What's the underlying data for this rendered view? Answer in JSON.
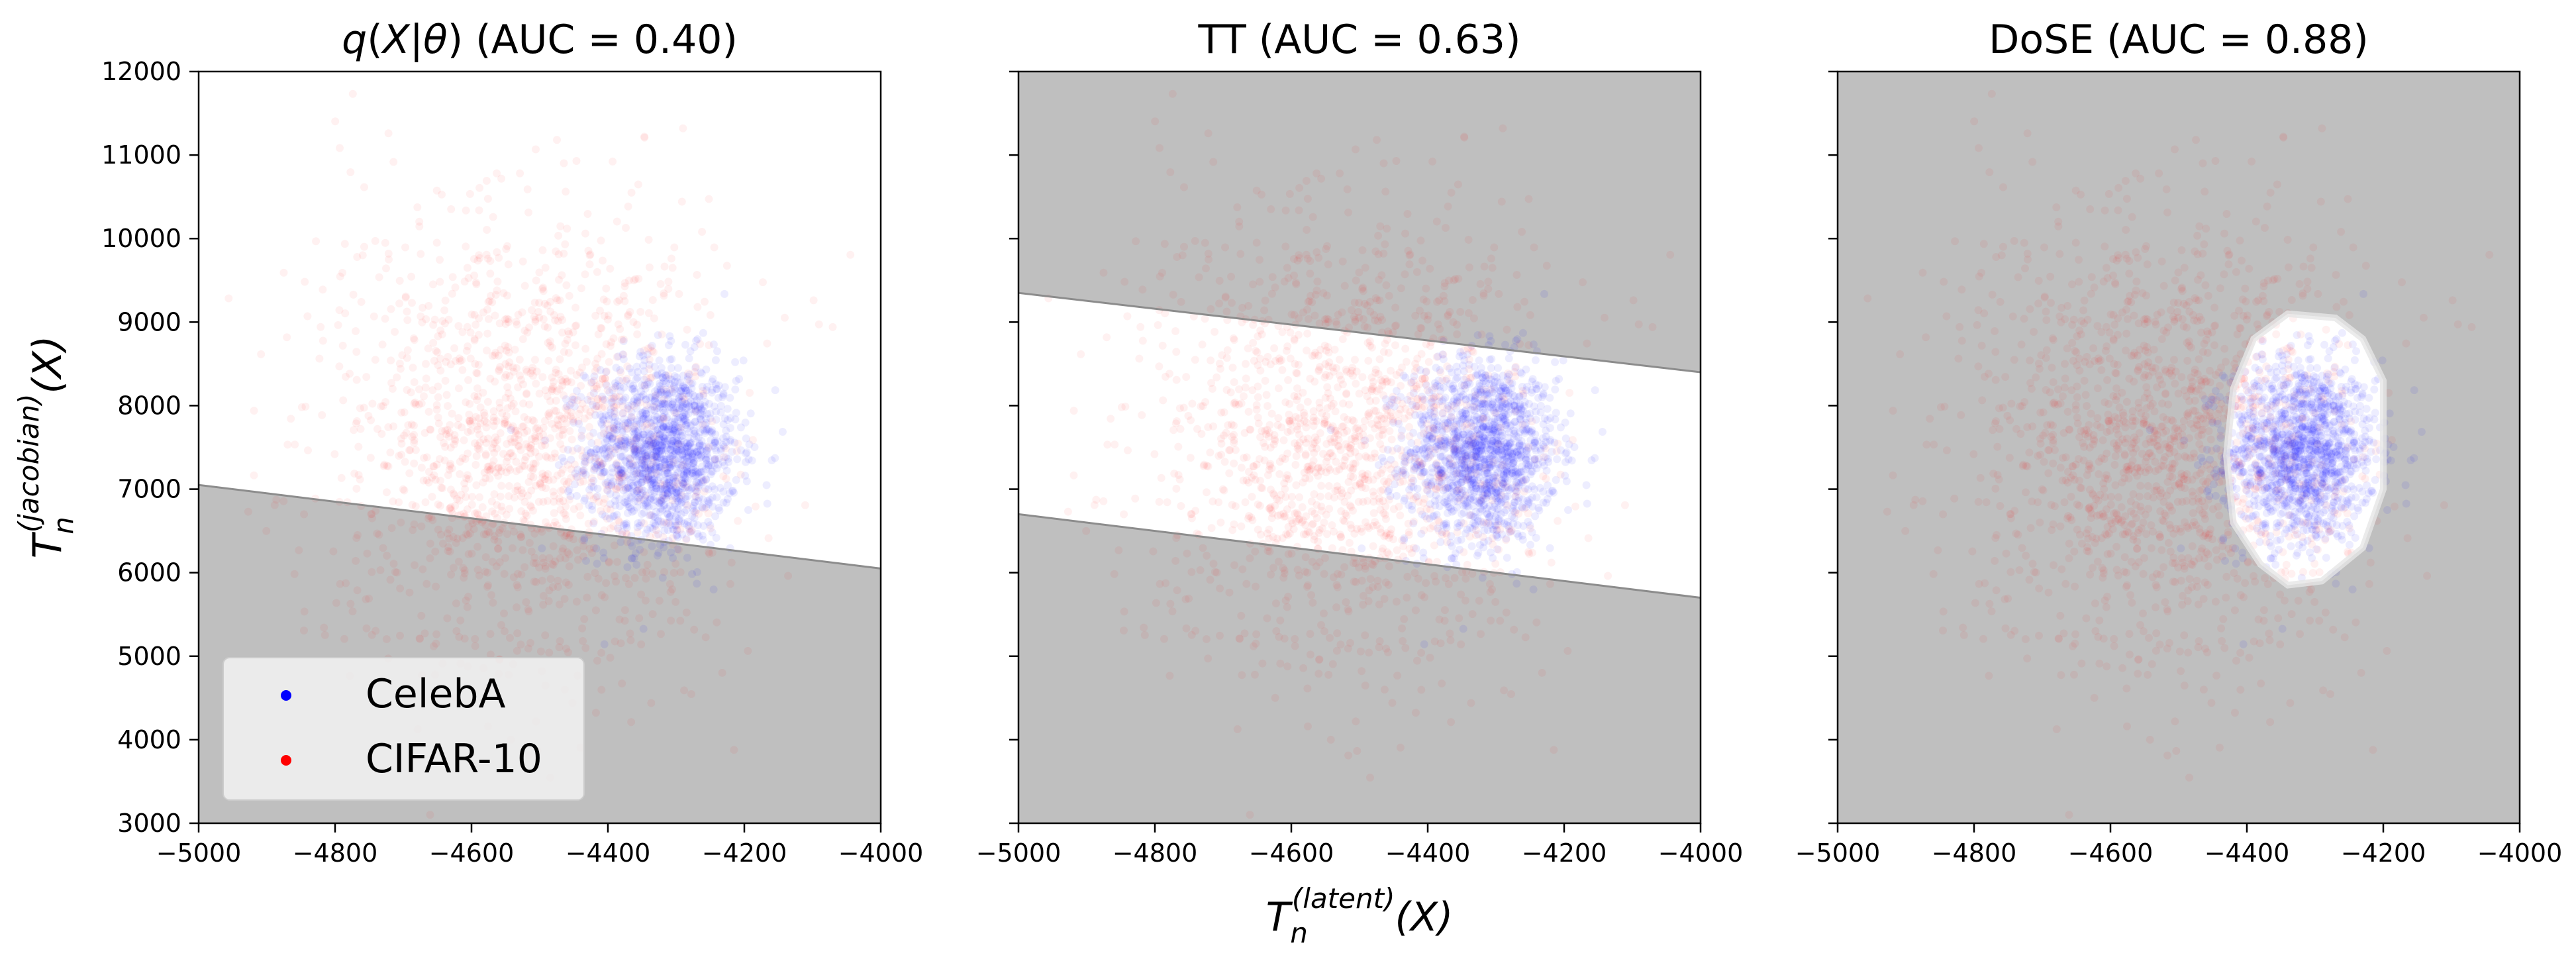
{
  "chart_data": [
    {
      "type": "scatter",
      "title": "q(X|θ) (AUC  = 0.40)",
      "title_parts": {
        "q": "q",
        "open": "(",
        "X": "X",
        "bar": "|",
        "theta": "θ",
        "close": ")",
        "rest": " (AUC  = 0.40)"
      },
      "xlim": [
        -5000,
        -4000
      ],
      "ylim": [
        3000,
        12000
      ],
      "x_ticks": [
        -5000,
        -4800,
        -4600,
        -4400,
        -4200,
        -4000
      ],
      "x_tick_labels": [
        "−5000",
        "−4800",
        "−4600",
        "−4400",
        "−4200",
        "−4000"
      ],
      "y_ticks": [
        3000,
        4000,
        5000,
        6000,
        7000,
        8000,
        9000,
        10000,
        11000,
        12000
      ],
      "y_tick_labels": [
        "3000",
        "4000",
        "5000",
        "6000",
        "7000",
        "8000",
        "9000",
        "10000",
        "11000",
        "12000"
      ],
      "decision_region": {
        "shading": "below_line",
        "lines": [
          {
            "x": [
              -5000,
              -4000
            ],
            "y": [
              7050,
              6050
            ]
          }
        ]
      },
      "legend": {
        "placement": "lower-left"
      }
    },
    {
      "type": "scatter",
      "title": "TT (AUC  = 0.63)",
      "xlim": [
        -5000,
        -4000
      ],
      "ylim": [
        3000,
        12000
      ],
      "x_ticks": [
        -5000,
        -4800,
        -4600,
        -4400,
        -4200,
        -4000
      ],
      "x_tick_labels": [
        "−5000",
        "−4800",
        "−4600",
        "−4400",
        "−4200",
        "−4000"
      ],
      "y_ticks": [
        3000,
        4000,
        5000,
        6000,
        7000,
        8000,
        9000,
        10000,
        11000,
        12000
      ],
      "decision_region": {
        "shading": "outside_band",
        "lines": [
          {
            "x": [
              -5000,
              -4000
            ],
            "y": [
              9350,
              8400
            ]
          },
          {
            "x": [
              -5000,
              -4000
            ],
            "y": [
              6700,
              5700
            ]
          }
        ]
      }
    },
    {
      "type": "scatter",
      "title": "DoSE (AUC  = 0.88)",
      "xlim": [
        -5000,
        -4000
      ],
      "ylim": [
        3000,
        12000
      ],
      "x_ticks": [
        -5000,
        -4800,
        -4600,
        -4400,
        -4200,
        -4000
      ],
      "x_tick_labels": [
        "−5000",
        "−4800",
        "−4600",
        "−4400",
        "−4200",
        "−4000"
      ],
      "y_ticks": [
        3000,
        4000,
        5000,
        6000,
        7000,
        8000,
        9000,
        10000,
        11000,
        12000
      ],
      "decision_region": {
        "shading": "outside_polygon",
        "polygon": {
          "x": [
            -4340,
            -4270,
            -4230,
            -4200,
            -4200,
            -4230,
            -4290,
            -4340,
            -4380,
            -4420,
            -4430,
            -4420,
            -4390
          ],
          "y": [
            9100,
            9050,
            8800,
            8300,
            7000,
            6300,
            5900,
            5850,
            6100,
            6600,
            7400,
            8200,
            8800
          ]
        }
      }
    }
  ],
  "series": [
    {
      "name": "CelebA",
      "color": "#0000ff",
      "center": [
        -4320,
        7450
      ],
      "spread": [
        55,
        550
      ],
      "n": 1400
    },
    {
      "name": "CIFAR-10",
      "color": "#ff0000",
      "center": [
        -4520,
        7600
      ],
      "spread": [
        140,
        1350
      ],
      "n": 1500
    }
  ],
  "shared": {
    "xlabel": "T_n^(latent)(X)",
    "ylabel": "T_n^(jacobian)(X)",
    "xlabel_parts": {
      "T": "T",
      "sub": "n",
      "sup": "(latent)",
      "arg": "(X)"
    },
    "ylabel_parts": {
      "T": "T",
      "sub": "n",
      "sup": "(jacobian)",
      "arg": "(X)"
    }
  },
  "colors": {
    "shade": "#bfbfbf",
    "boundary": "#8c8c8c",
    "axis": "#000000"
  }
}
